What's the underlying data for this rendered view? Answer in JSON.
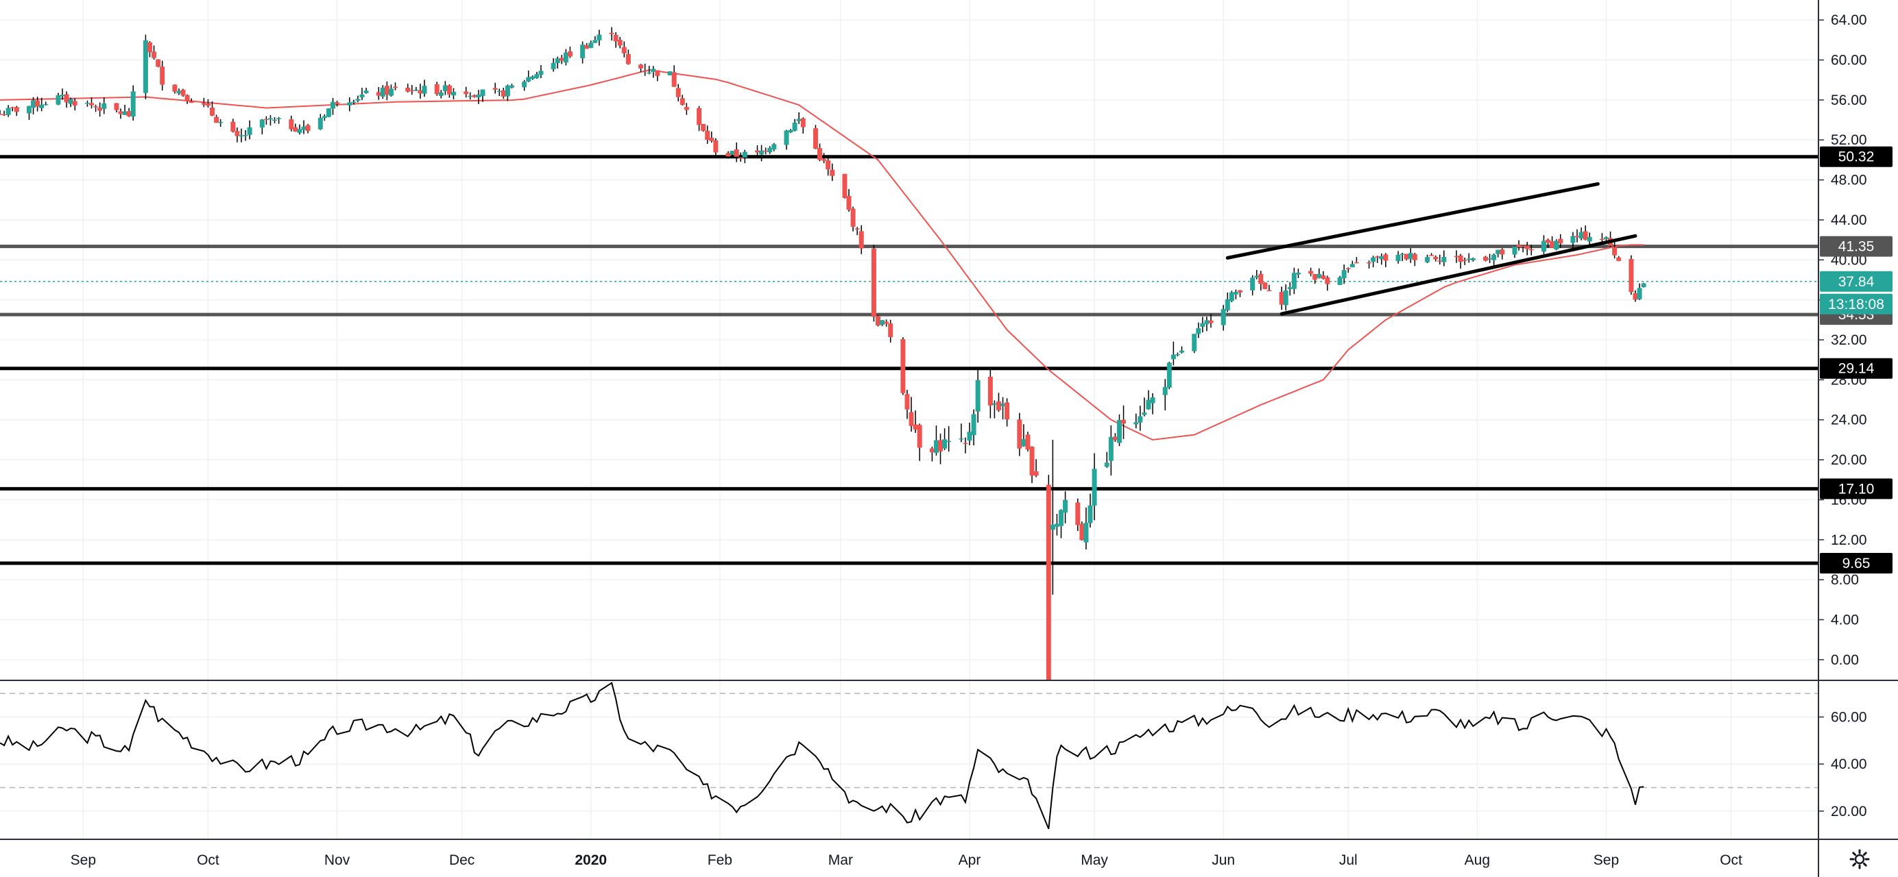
{
  "chart_data": [
    {
      "type": "candlestick",
      "title": "",
      "ylabel": "",
      "ylim": [
        -2,
        66
      ],
      "y_ticks": [
        "0.00",
        "4.00",
        "8.00",
        "12.00",
        "16.00",
        "20.00",
        "24.00",
        "28.00",
        "32.00",
        "36.00",
        "40.00",
        "44.00",
        "48.00",
        "52.00",
        "56.00",
        "60.00",
        "64.00"
      ],
      "x_months": [
        {
          "label": "Sep",
          "date": "2019-09-01"
        },
        {
          "label": "Oct",
          "date": "2019-10-01"
        },
        {
          "label": "Nov",
          "date": "2019-11-01"
        },
        {
          "label": "Dec",
          "date": "2019-12-01"
        },
        {
          "label": "2020",
          "date": "2020-01-01",
          "bold": true
        },
        {
          "label": "Feb",
          "date": "2020-02-01"
        },
        {
          "label": "Mar",
          "date": "2020-03-01"
        },
        {
          "label": "Apr",
          "date": "2020-04-01"
        },
        {
          "label": "May",
          "date": "2020-05-01"
        },
        {
          "label": "Jun",
          "date": "2020-06-01"
        },
        {
          "label": "Jul",
          "date": "2020-07-01"
        },
        {
          "label": "Aug",
          "date": "2020-08-01"
        },
        {
          "label": "Sep",
          "date": "2020-09-01"
        },
        {
          "label": "Oct",
          "date": "2020-10-01"
        }
      ],
      "x_range": [
        "2019-08-12",
        "2020-10-22"
      ],
      "anchors": [
        [
          "2019-08-12",
          54.6
        ],
        [
          "2019-08-26",
          56.2
        ],
        [
          "2019-09-06",
          55.2
        ],
        [
          "2019-09-12",
          54.5
        ],
        [
          "2019-09-16",
          62.0
        ],
        [
          "2019-09-20",
          58.0
        ],
        [
          "2019-10-01",
          55.0
        ],
        [
          "2019-10-08",
          52.0
        ],
        [
          "2019-10-15",
          54.0
        ],
        [
          "2019-10-25",
          53.0
        ],
        [
          "2019-11-01",
          56.0
        ],
        [
          "2019-11-15",
          57.0
        ],
        [
          "2019-11-29",
          57.0
        ],
        [
          "2019-12-10",
          56.5
        ],
        [
          "2019-12-20",
          59.0
        ],
        [
          "2020-01-02",
          62.0
        ],
        [
          "2020-01-06",
          63.0
        ],
        [
          "2020-01-10",
          59.5
        ],
        [
          "2020-01-20",
          58.5
        ],
        [
          "2020-01-24",
          55.0
        ],
        [
          "2020-02-01",
          50.5
        ],
        [
          "2020-02-10",
          50.5
        ],
        [
          "2020-02-20",
          54.0
        ],
        [
          "2020-03-02",
          46.0
        ],
        [
          "2020-03-06",
          41.5
        ],
        [
          "2020-03-09",
          34.0
        ],
        [
          "2020-03-12",
          33.5
        ],
        [
          "2020-03-16",
          27.0
        ],
        [
          "2020-03-20",
          22.0
        ],
        [
          "2020-03-31",
          21.0
        ],
        [
          "2020-04-03",
          27.5
        ],
        [
          "2020-04-09",
          25.0
        ],
        [
          "2020-04-16",
          19.5
        ],
        [
          "2020-04-20",
          17.0
        ],
        [
          "2020-04-21",
          13.0
        ],
        [
          "2020-04-24",
          16.0
        ],
        [
          "2020-04-28",
          12.5
        ],
        [
          "2020-05-01",
          18.0
        ],
        [
          "2020-05-08",
          24.0
        ],
        [
          "2020-05-15",
          26.0
        ],
        [
          "2020-05-22",
          31.0
        ],
        [
          "2020-06-01",
          35.5
        ],
        [
          "2020-06-08",
          38.5
        ],
        [
          "2020-06-12",
          36.5
        ],
        [
          "2020-06-15",
          36.0
        ],
        [
          "2020-06-19",
          39.0
        ],
        [
          "2020-06-26",
          38.0
        ],
        [
          "2020-07-06",
          40.0
        ],
        [
          "2020-07-20",
          40.5
        ],
        [
          "2020-07-29",
          40.0
        ],
        [
          "2020-08-05",
          40.5
        ],
        [
          "2020-08-17",
          41.5
        ],
        [
          "2020-08-28",
          42.5
        ],
        [
          "2020-09-01",
          42.0
        ],
        [
          "2020-09-04",
          40.0
        ],
        [
          "2020-09-08",
          36.3
        ],
        [
          "2020-09-10",
          37.8
        ]
      ],
      "special_candles": [
        {
          "date": "2020-04-20",
          "open": 17.5,
          "high": 18.5,
          "low": -2.0,
          "close": -2.0
        },
        {
          "date": "2020-04-21",
          "open": 13.0,
          "high": 22.0,
          "low": 6.5,
          "close": 13.5
        }
      ],
      "colors": {
        "up": "#26a69a",
        "down": "#ef5350",
        "ma": "#ef5350",
        "grid": "#eef0f3",
        "text": "#131722"
      },
      "moving_average": [
        [
          "2019-08-12",
          56.0
        ],
        [
          "2019-09-16",
          56.3
        ],
        [
          "2019-10-15",
          55.2
        ],
        [
          "2019-11-15",
          55.8
        ],
        [
          "2019-12-15",
          56.0
        ],
        [
          "2020-01-01",
          57.5
        ],
        [
          "2020-01-15",
          59.0
        ],
        [
          "2020-02-01",
          58.0
        ],
        [
          "2020-02-20",
          55.5
        ],
        [
          "2020-03-10",
          50.0
        ],
        [
          "2020-03-25",
          42.0
        ],
        [
          "2020-04-10",
          33.0
        ],
        [
          "2020-04-20",
          29.0
        ],
        [
          "2020-05-05",
          24.0
        ],
        [
          "2020-05-15",
          22.0
        ],
        [
          "2020-05-25",
          22.5
        ],
        [
          "2020-06-10",
          25.5
        ],
        [
          "2020-06-25",
          28.0
        ],
        [
          "2020-07-01",
          31.0
        ],
        [
          "2020-07-10",
          34.0
        ],
        [
          "2020-07-25",
          37.5
        ],
        [
          "2020-08-10",
          39.5
        ],
        [
          "2020-08-25",
          40.5
        ],
        [
          "2020-09-05",
          41.5
        ]
      ],
      "levels": [
        {
          "value": 50.32,
          "label": "50.32",
          "color": "#000000",
          "bg": "#000000",
          "width": 5
        },
        {
          "value": 41.35,
          "label": "41.35",
          "color": "#555555",
          "bg": "#555555",
          "width": 5
        },
        {
          "value": 34.53,
          "label": "34.53",
          "color": "#555555",
          "bg": "#555555",
          "width": 5
        },
        {
          "value": 29.14,
          "label": "29.14",
          "color": "#000000",
          "bg": "#000000",
          "width": 5
        },
        {
          "value": 17.1,
          "label": "17.10",
          "color": "#000000",
          "bg": "#000000",
          "width": 5
        },
        {
          "value": 9.65,
          "label": "9.65",
          "color": "#000000",
          "bg": "#000000",
          "width": 5
        }
      ],
      "current_price": {
        "value": 37.84,
        "label": "37.84",
        "countdown": "13:18:08",
        "color": "#26a69a"
      },
      "trendlines": [
        {
          "from": [
            "2020-06-02",
            40.2
          ],
          "to": [
            "2020-08-30",
            47.6
          ]
        },
        {
          "from": [
            "2020-06-15",
            34.6
          ],
          "to": [
            "2020-09-08",
            42.4
          ]
        }
      ]
    },
    {
      "type": "line",
      "title": "",
      "ylabel": "",
      "ylim": [
        8,
        75
      ],
      "y_ticks": [
        "20.00",
        "40.00",
        "60.00"
      ],
      "bands": [
        70,
        30
      ],
      "rsi_anchors": [
        [
          "2019-08-12",
          50
        ],
        [
          "2019-08-20",
          47
        ],
        [
          "2019-08-28",
          55
        ],
        [
          "2019-09-05",
          50
        ],
        [
          "2019-09-12",
          45
        ],
        [
          "2019-09-16",
          68
        ],
        [
          "2019-09-20",
          58
        ],
        [
          "2019-10-01",
          45
        ],
        [
          "2019-10-08",
          38
        ],
        [
          "2019-10-15",
          40
        ],
        [
          "2019-10-25",
          43
        ],
        [
          "2019-11-01",
          55
        ],
        [
          "2019-11-10",
          57
        ],
        [
          "2019-11-20",
          54
        ],
        [
          "2019-11-29",
          60
        ],
        [
          "2019-12-05",
          45
        ],
        [
          "2019-12-10",
          55
        ],
        [
          "2019-12-20",
          60
        ],
        [
          "2019-12-31",
          67
        ],
        [
          "2020-01-06",
          72
        ],
        [
          "2020-01-10",
          50
        ],
        [
          "2020-01-20",
          45
        ],
        [
          "2020-01-28",
          30
        ],
        [
          "2020-02-05",
          22
        ],
        [
          "2020-02-10",
          28
        ],
        [
          "2020-02-15",
          40
        ],
        [
          "2020-02-22",
          52
        ],
        [
          "2020-02-28",
          35
        ],
        [
          "2020-03-06",
          20
        ],
        [
          "2020-03-12",
          22
        ],
        [
          "2020-03-18",
          16
        ],
        [
          "2020-03-24",
          25
        ],
        [
          "2020-03-31",
          25
        ],
        [
          "2020-04-03",
          45
        ],
        [
          "2020-04-09",
          36
        ],
        [
          "2020-04-16",
          30
        ],
        [
          "2020-04-20",
          10
        ],
        [
          "2020-04-22",
          45
        ],
        [
          "2020-05-01",
          45
        ],
        [
          "2020-05-08",
          48
        ],
        [
          "2020-05-15",
          55
        ],
        [
          "2020-05-25",
          58
        ],
        [
          "2020-06-01",
          62
        ],
        [
          "2020-06-08",
          65
        ],
        [
          "2020-06-12",
          58
        ],
        [
          "2020-06-19",
          63
        ],
        [
          "2020-06-26",
          60
        ],
        [
          "2020-07-06",
          62
        ],
        [
          "2020-07-15",
          60
        ],
        [
          "2020-07-22",
          62
        ],
        [
          "2020-08-01",
          55
        ],
        [
          "2020-08-05",
          60
        ],
        [
          "2020-08-12",
          55
        ],
        [
          "2020-08-17",
          62
        ],
        [
          "2020-08-24",
          60
        ],
        [
          "2020-08-28",
          58
        ],
        [
          "2020-09-02",
          52
        ],
        [
          "2020-09-08",
          25
        ],
        [
          "2020-09-10",
          32
        ]
      ]
    }
  ],
  "toolbar": {
    "settings_icon": "gear-icon"
  }
}
